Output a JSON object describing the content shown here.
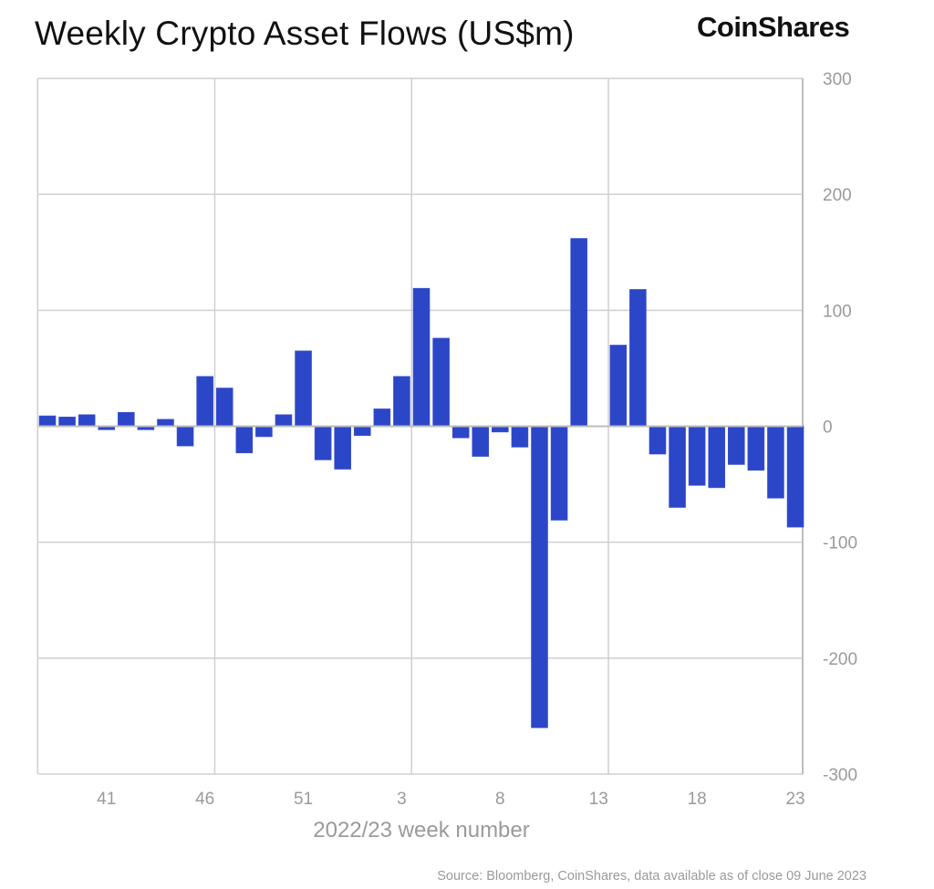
{
  "chart_data": {
    "type": "bar",
    "title": "Weekly Crypto Asset Flows (US$m)",
    "brand": "CoinShares",
    "xlabel": "2022/23 week number",
    "ylabel": "",
    "source": "Source: Bloomberg, CoinShares, data available as of close 09 June 2023",
    "ylim": [
      -300,
      300
    ],
    "yticks": [
      300,
      200,
      100,
      0,
      -100,
      -200,
      -300
    ],
    "x_tick_labels": [
      {
        "bar_index": 3,
        "label": "41"
      },
      {
        "bar_index": 8,
        "label": "46"
      },
      {
        "bar_index": 13,
        "label": "51"
      },
      {
        "bar_index": 18,
        "label": "3"
      },
      {
        "bar_index": 23,
        "label": "8"
      },
      {
        "bar_index": 28,
        "label": "13"
      },
      {
        "bar_index": 33,
        "label": "18"
      },
      {
        "bar_index": 38,
        "label": "23"
      }
    ],
    "values": [
      9,
      8,
      10,
      -3,
      12,
      -3,
      6,
      -17,
      43,
      33,
      -23,
      -9,
      10,
      65,
      -29,
      -37,
      -8,
      15,
      43,
      119,
      76,
      -10,
      -26,
      -5,
      -18,
      -260,
      -81,
      162,
      0,
      70,
      118,
      -24,
      -70,
      -51,
      -53,
      -33,
      -38,
      -62,
      -87
    ],
    "bar_color": "#2c46c8",
    "grid": true,
    "yaxis_position": "right"
  }
}
